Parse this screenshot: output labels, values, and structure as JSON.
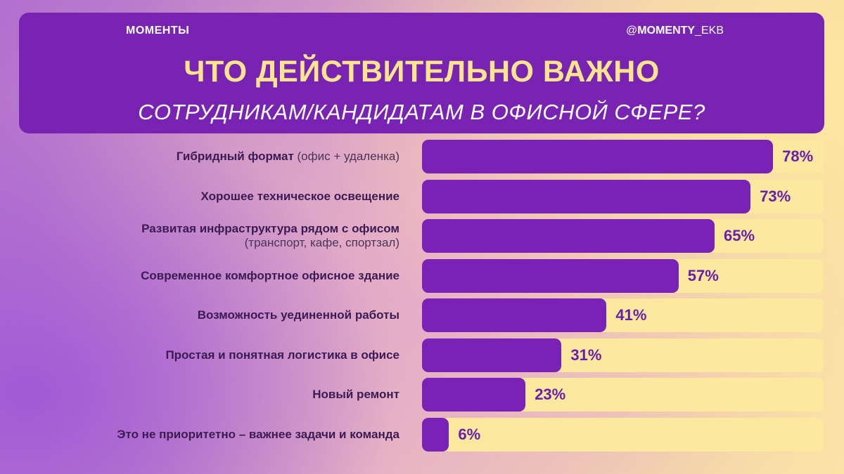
{
  "header": {
    "brand": "МОМЕНТЫ",
    "handle_prefix": "@",
    "handle_bold": "MOMENTY",
    "handle_suffix": "_EKB",
    "title": "ЧТО ДЕЙСТВИТЕЛЬНО ВАЖНО",
    "subtitle": "СОТРУДНИКАМ/КАНДИДАТАМ В ОФИСНОЙ СФЕРЕ?"
  },
  "colors": {
    "bar": "#7a22b6",
    "track": "#fde8a0",
    "header_bg": "#7823b2",
    "title": "#fde58f"
  },
  "chart_data": {
    "type": "bar",
    "orientation": "horizontal",
    "title": "ЧТО ДЕЙСТВИТЕЛЬНО ВАЖНО СОТРУДНИКАМ/КАНДИДАТАМ В ОФИСНОЙ СФЕРЕ?",
    "xlim": [
      0,
      100
    ],
    "unit": "%",
    "items": [
      {
        "label": "Гибридный формат",
        "note": "(офис + удаленка)",
        "note_inline": true,
        "value": 78,
        "value_label": "78%"
      },
      {
        "label": "Хорошее техническое освещение",
        "note": "",
        "note_inline": true,
        "value": 73,
        "value_label": "73%"
      },
      {
        "label": "Развитая инфраструктура рядом с офисом",
        "note": "(транспорт, кафе, спортзал)",
        "note_inline": false,
        "value": 65,
        "value_label": "65%"
      },
      {
        "label": "Современное комфортное офисное здание",
        "note": "",
        "note_inline": true,
        "value": 57,
        "value_label": "57%"
      },
      {
        "label": "Возможность уединенной работы",
        "note": "",
        "note_inline": true,
        "value": 41,
        "value_label": "41%"
      },
      {
        "label": "Простая и понятная логистика в офисе",
        "note": "",
        "note_inline": true,
        "value": 31,
        "value_label": "31%"
      },
      {
        "label": "Новый ремонт",
        "note": "",
        "note_inline": true,
        "value": 23,
        "value_label": "23%"
      },
      {
        "label": "Это не приоритетно – важнее задачи и команда",
        "note": "",
        "note_inline": true,
        "value": 6,
        "value_label": "6%"
      }
    ]
  }
}
